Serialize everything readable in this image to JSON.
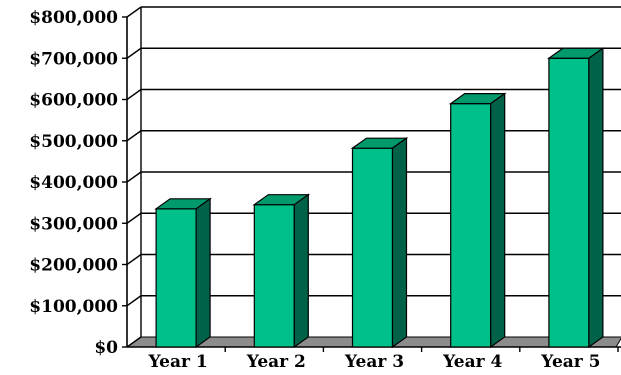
{
  "chart_data": {
    "type": "bar",
    "style": "3d-column",
    "title": "",
    "xlabel": "",
    "ylabel": "",
    "categories": [
      "Year 1",
      "Year 2",
      "Year 3",
      "Year 4",
      "Year 5"
    ],
    "values": [
      335000,
      345000,
      482000,
      590000,
      700000
    ],
    "ylim": [
      0,
      800000
    ],
    "yticks": [
      0,
      100000,
      200000,
      300000,
      400000,
      500000,
      600000,
      700000,
      800000
    ],
    "ytick_labels": [
      "$0",
      "$100,000",
      "$200,000",
      "$300,000",
      "$400,000",
      "$500,000",
      "$600,000",
      "$700,000",
      "$800,000"
    ],
    "grid": true,
    "legend": "none",
    "colors": {
      "bar_front": "#00C08A",
      "bar_top": "#009A6C",
      "bar_side": "#006248",
      "floor": "#8C8C8C",
      "grid": "#000000"
    }
  }
}
